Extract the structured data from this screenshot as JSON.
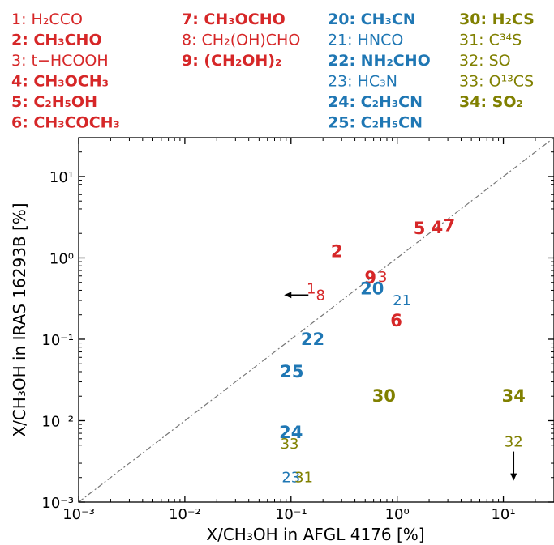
{
  "colors": {
    "red": "#d62728",
    "blue": "#1f77b4",
    "olive": "#808000",
    "ink": "#000000",
    "diag": "#777777"
  },
  "legend": [
    {
      "num": "1",
      "name": "H₂CCO",
      "color": "red",
      "bold": false
    },
    {
      "num": "2",
      "name": "CH₃CHO",
      "color": "red",
      "bold": true
    },
    {
      "num": "3",
      "name": "t−HCOOH",
      "color": "red",
      "bold": false
    },
    {
      "num": "4",
      "name": "CH₃OCH₃",
      "color": "red",
      "bold": true
    },
    {
      "num": "5",
      "name": "C₂H₅OH",
      "color": "red",
      "bold": true
    },
    {
      "num": "6",
      "name": "CH₃COCH₃",
      "color": "red",
      "bold": true
    },
    {
      "num": "7",
      "name": "CH₃OCHO",
      "color": "red",
      "bold": true
    },
    {
      "num": "8",
      "name": "CH₂(OH)CHO",
      "color": "red",
      "bold": false
    },
    {
      "num": "9",
      "name": "(CH₂OH)₂",
      "color": "red",
      "bold": true
    },
    {
      "num": "20",
      "name": "CH₃CN",
      "color": "blue",
      "bold": true
    },
    {
      "num": "21",
      "name": "HNCO",
      "color": "blue",
      "bold": false
    },
    {
      "num": "22",
      "name": "NH₂CHO",
      "color": "blue",
      "bold": true
    },
    {
      "num": "23",
      "name": "HC₃N",
      "color": "blue",
      "bold": false
    },
    {
      "num": "24",
      "name": "C₂H₃CN",
      "color": "blue",
      "bold": true
    },
    {
      "num": "25",
      "name": "C₂H₅CN",
      "color": "blue",
      "bold": true
    },
    {
      "num": "30",
      "name": "H₂CS",
      "color": "olive",
      "bold": true
    },
    {
      "num": "31",
      "name": "C³⁴S",
      "color": "olive",
      "bold": false
    },
    {
      "num": "32",
      "name": "SO",
      "color": "olive",
      "bold": false
    },
    {
      "num": "33",
      "name": "O¹³CS",
      "color": "olive",
      "bold": false
    },
    {
      "num": "34",
      "name": "SO₂",
      "color": "olive",
      "bold": true
    }
  ],
  "chart_data": {
    "type": "scatter",
    "xlabel": "X/CH₃OH in AFGL 4176 [%]",
    "ylabel": "X/CH₃OH in IRAS 16293B [%]",
    "xscale": "log",
    "yscale": "log",
    "xlim": [
      0.001,
      30
    ],
    "ylim": [
      0.001,
      30
    ],
    "xticks": [
      {
        "value": 0.001,
        "label": "10⁻³"
      },
      {
        "value": 0.01,
        "label": "10⁻²"
      },
      {
        "value": 0.1,
        "label": "10⁻¹"
      },
      {
        "value": 1,
        "label": "10⁰"
      },
      {
        "value": 10,
        "label": "10¹"
      }
    ],
    "yticks": [
      {
        "value": 0.001,
        "label": "10⁻³"
      },
      {
        "value": 0.01,
        "label": "10⁻²"
      },
      {
        "value": 0.1,
        "label": "10⁻¹"
      },
      {
        "value": 1,
        "label": "10⁰"
      },
      {
        "value": 10,
        "label": "10¹"
      }
    ],
    "reference_line": "y = x",
    "points": [
      {
        "label": "1",
        "x": 0.155,
        "y": 0.42,
        "color": "red",
        "bold": false,
        "limit": "upper-x"
      },
      {
        "label": "8",
        "x": 0.19,
        "y": 0.35,
        "color": "red",
        "bold": false,
        "limit": "upper-x"
      },
      {
        "label": "2",
        "x": 0.27,
        "y": 1.2,
        "color": "red",
        "bold": true
      },
      {
        "label": "3",
        "x": 0.73,
        "y": 0.58,
        "color": "red",
        "bold": false
      },
      {
        "label": "9",
        "x": 0.56,
        "y": 0.57,
        "color": "red",
        "bold": true
      },
      {
        "label": "5",
        "x": 1.62,
        "y": 2.3,
        "color": "red",
        "bold": true
      },
      {
        "label": "4",
        "x": 2.38,
        "y": 2.35,
        "color": "red",
        "bold": true
      },
      {
        "label": "7",
        "x": 3.1,
        "y": 2.5,
        "color": "red",
        "bold": true
      },
      {
        "label": "6",
        "x": 0.98,
        "y": 0.17,
        "color": "red",
        "bold": true
      },
      {
        "label": "20",
        "x": 0.58,
        "y": 0.42,
        "color": "blue",
        "bold": true
      },
      {
        "label": "21",
        "x": 1.11,
        "y": 0.3,
        "color": "blue",
        "bold": false
      },
      {
        "label": "22",
        "x": 0.16,
        "y": 0.1,
        "color": "blue",
        "bold": true
      },
      {
        "label": "25",
        "x": 0.102,
        "y": 0.04,
        "color": "blue",
        "bold": true
      },
      {
        "label": "24",
        "x": 0.1,
        "y": 0.0072,
        "color": "blue",
        "bold": true
      },
      {
        "label": "23",
        "x": 0.1,
        "y": 0.002,
        "color": "blue",
        "bold": false
      },
      {
        "label": "31",
        "x": 0.132,
        "y": 0.002,
        "color": "olive",
        "bold": false
      },
      {
        "label": "33",
        "x": 0.097,
        "y": 0.0052,
        "color": "olive",
        "bold": false
      },
      {
        "label": "30",
        "x": 0.75,
        "y": 0.02,
        "color": "olive",
        "bold": true
      },
      {
        "label": "34",
        "x": 12.5,
        "y": 0.02,
        "color": "olive",
        "bold": true
      },
      {
        "label": "32",
        "x": 12.5,
        "y": 0.0055,
        "color": "olive",
        "bold": false,
        "limit": "upper-y"
      }
    ]
  }
}
